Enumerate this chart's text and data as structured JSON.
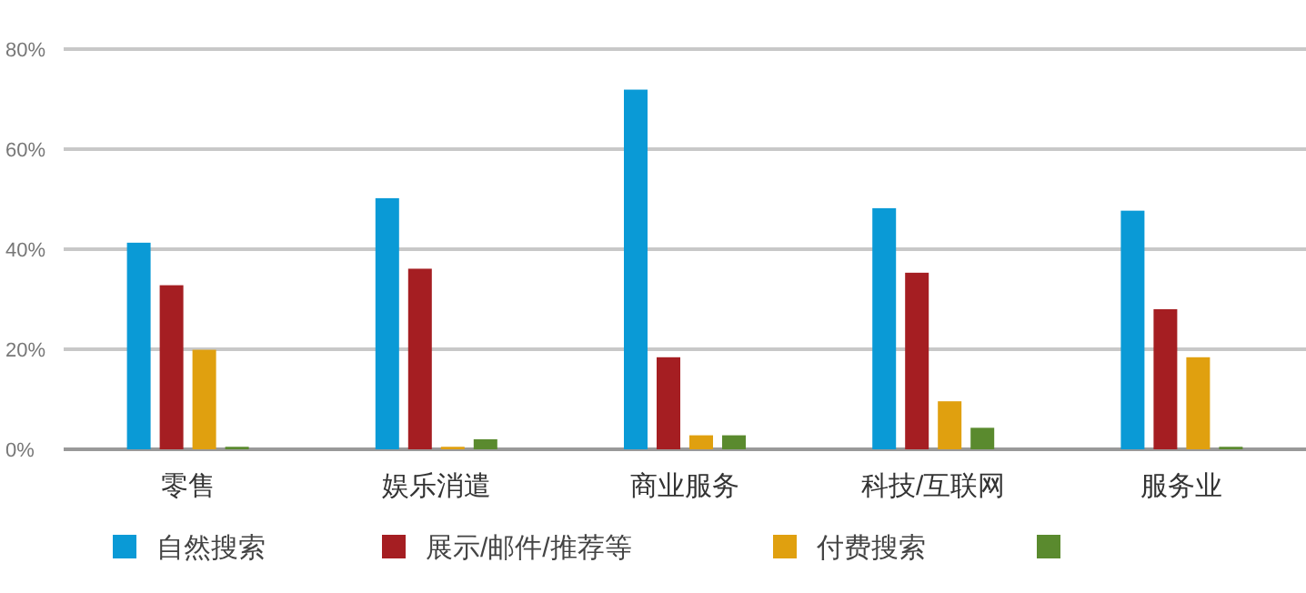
{
  "chart_data": {
    "type": "bar",
    "categories": [
      "零售",
      "娱乐消遣",
      "商业服务",
      "科技/互联网",
      "服务业"
    ],
    "series": [
      {
        "name": "自然搜索",
        "color": "#0a9ad6",
        "values": [
          41.3,
          50.2,
          71.9,
          48.2,
          47.7
        ]
      },
      {
        "name": "展示/邮件/推荐等",
        "color": "#a51e22",
        "values": [
          32.8,
          36.1,
          18.4,
          35.3,
          28.0
        ]
      },
      {
        "name": "付费搜索",
        "color": "#e0a00f",
        "values": [
          19.9,
          0.5,
          2.8,
          9.6,
          18.4
        ]
      },
      {
        "color": "#5a8a2e",
        "values": [
          0.5,
          2.0,
          2.8,
          4.3,
          0.5
        ]
      }
    ],
    "ylim": [
      0,
      80
    ],
    "yticks": [
      {
        "value": 0,
        "label": "0%"
      },
      {
        "value": 20,
        "label": "20%"
      },
      {
        "value": 40,
        "label": "40%"
      },
      {
        "value": 60,
        "label": "60%"
      },
      {
        "value": 80,
        "label": "80%"
      }
    ],
    "grid": "y",
    "legend": "bottom"
  }
}
